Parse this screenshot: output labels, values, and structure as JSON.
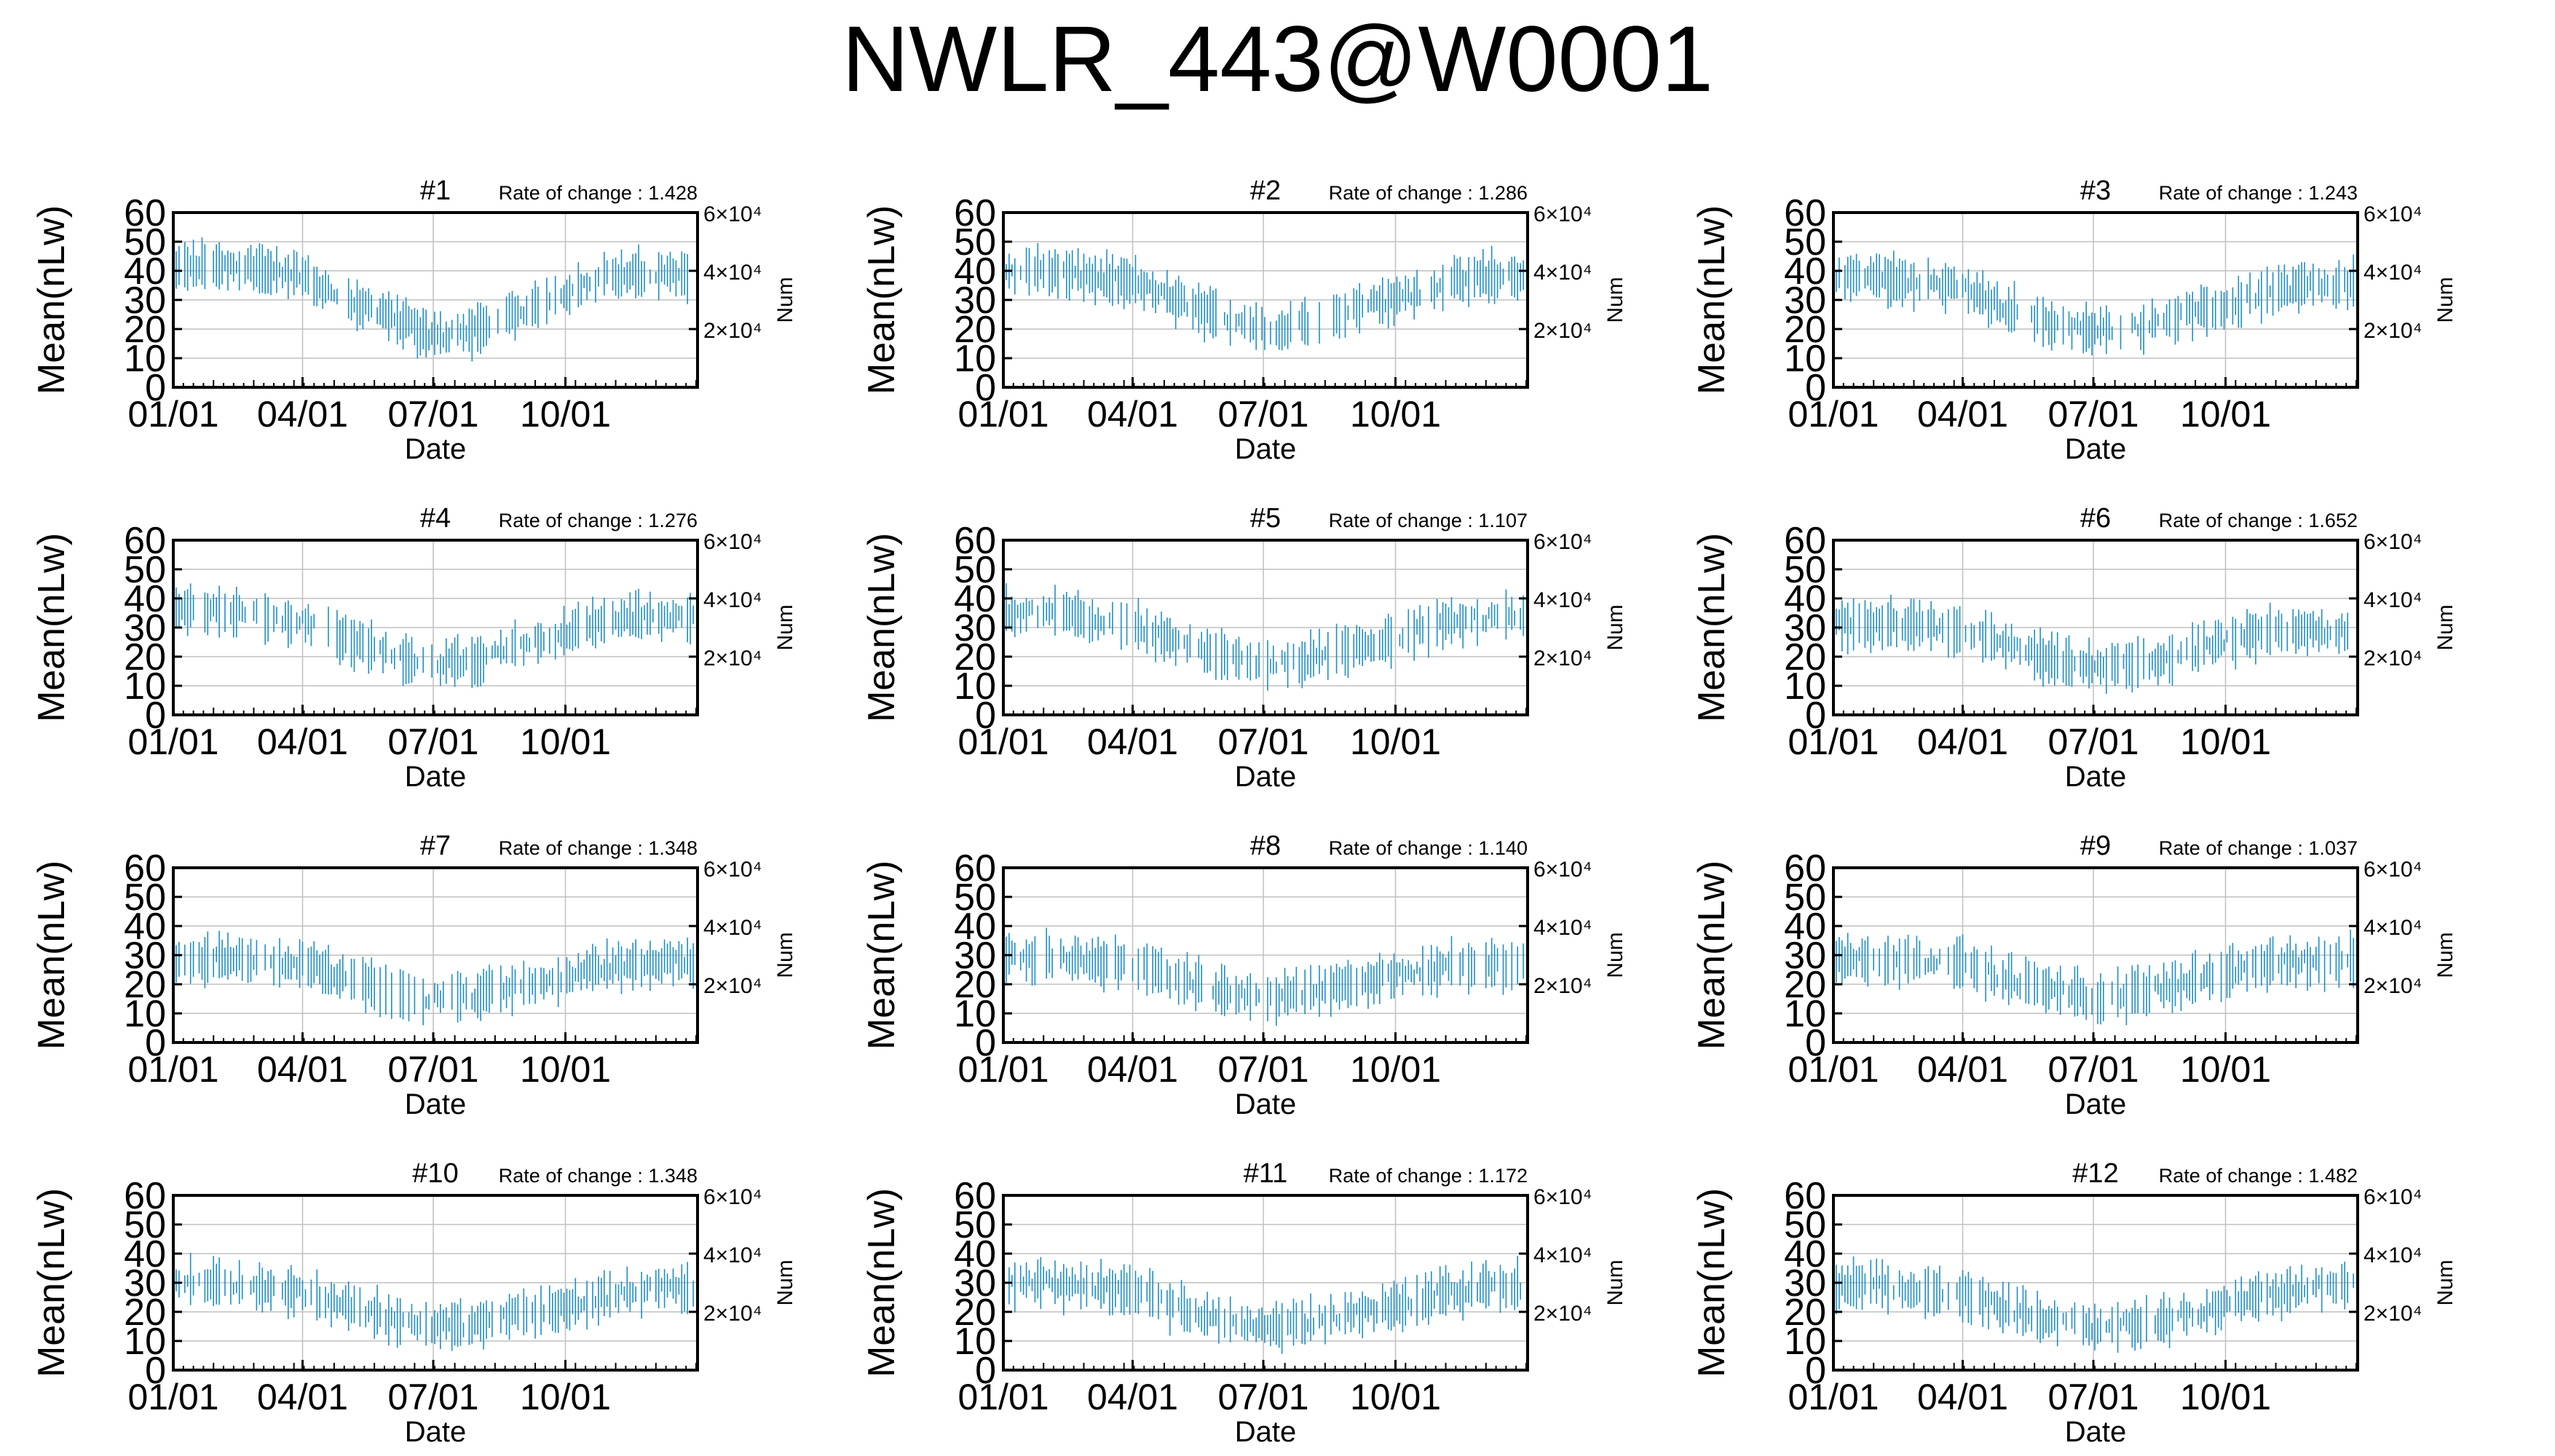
{
  "title": "NWLR_443@W0001",
  "colors": {
    "data": "#1e8fc8",
    "grid": "#c0c0c0",
    "axis": "#000000"
  },
  "chart_data": [
    {
      "type": "line",
      "subtitle": "#1",
      "rate_label": "Rate of change : 1.428",
      "xlabel": "Date",
      "ylabel": "Mean(nLw)",
      "y2label": "Num",
      "ylim": [
        0,
        60
      ],
      "yticks": [
        0,
        10,
        20,
        30,
        40,
        50,
        60
      ],
      "y2lim": [
        0,
        60000
      ],
      "y2ticks": [
        "2×10⁴",
        "4×10⁴",
        "6×10⁴"
      ],
      "xticks": [
        "01/01",
        "04/01",
        "07/01",
        "10/01"
      ],
      "grid": true,
      "series": [
        {
          "x": [
            "01/01",
            "02/01",
            "03/01",
            "04/01",
            "05/01",
            "06/01",
            "07/01",
            "08/01",
            "09/01",
            "10/01",
            "11/01",
            "12/01",
            "12/31"
          ],
          "values": [
            41,
            42,
            41,
            38,
            30,
            25,
            17,
            20,
            26,
            33,
            38,
            39,
            39
          ]
        }
      ]
    },
    {
      "type": "line",
      "subtitle": "#2",
      "rate_label": "Rate of change : 1.286",
      "xlabel": "Date",
      "ylabel": "Mean(nLw)",
      "y2label": "Num",
      "ylim": [
        0,
        60
      ],
      "yticks": [
        0,
        10,
        20,
        30,
        40,
        50,
        60
      ],
      "y2lim": [
        0,
        60000
      ],
      "y2ticks": [
        "2×10⁴",
        "4×10⁴",
        "6×10⁴"
      ],
      "xticks": [
        "01/01",
        "04/01",
        "07/01",
        "10/01"
      ],
      "grid": true,
      "series": [
        {
          "x": [
            "01/01",
            "02/01",
            "03/01",
            "04/01",
            "05/01",
            "06/01",
            "07/01",
            "08/01",
            "09/01",
            "10/01",
            "11/01",
            "12/01",
            "12/31"
          ],
          "values": [
            40,
            40,
            38,
            36,
            30,
            24,
            20,
            22,
            27,
            30,
            35,
            38,
            38
          ]
        }
      ]
    },
    {
      "type": "line",
      "subtitle": "#3",
      "rate_label": "Rate of change : 1.243",
      "xlabel": "Date",
      "ylabel": "Mean(nLw)",
      "y2label": "Num",
      "ylim": [
        0,
        60
      ],
      "yticks": [
        0,
        10,
        20,
        30,
        40,
        50,
        60
      ],
      "y2lim": [
        0,
        60000
      ],
      "y2ticks": [
        "2×10⁴",
        "4×10⁴",
        "6×10⁴"
      ],
      "xticks": [
        "01/01",
        "04/01",
        "07/01",
        "10/01"
      ],
      "grid": true,
      "series": [
        {
          "x": [
            "01/01",
            "02/01",
            "03/01",
            "04/01",
            "05/01",
            "06/01",
            "07/01",
            "08/01",
            "09/01",
            "10/01",
            "11/01",
            "12/01",
            "12/31"
          ],
          "values": [
            38,
            38,
            36,
            34,
            27,
            22,
            19,
            21,
            25,
            28,
            33,
            35,
            35
          ]
        }
      ]
    },
    {
      "type": "line",
      "subtitle": "#4",
      "rate_label": "Rate of change : 1.276",
      "xlabel": "Date",
      "ylabel": "Mean(nLw)",
      "y2label": "Num",
      "ylim": [
        0,
        60
      ],
      "yticks": [
        0,
        10,
        20,
        30,
        40,
        50,
        60
      ],
      "y2lim": [
        0,
        60000
      ],
      "y2ticks": [
        "2×10⁴",
        "4×10⁴",
        "6×10⁴"
      ],
      "xticks": [
        "01/01",
        "04/01",
        "07/01",
        "10/01"
      ],
      "grid": true,
      "series": [
        {
          "x": [
            "01/01",
            "02/01",
            "03/01",
            "04/01",
            "05/01",
            "06/01",
            "07/01",
            "08/01",
            "09/01",
            "10/01",
            "11/01",
            "12/01",
            "12/31"
          ],
          "values": [
            36,
            36,
            34,
            32,
            26,
            21,
            17,
            19,
            24,
            28,
            32,
            34,
            34
          ]
        }
      ]
    },
    {
      "type": "line",
      "subtitle": "#5",
      "rate_label": "Rate of change : 1.107",
      "xlabel": "Date",
      "ylabel": "Mean(nLw)",
      "y2label": "Num",
      "ylim": [
        0,
        60
      ],
      "yticks": [
        0,
        10,
        20,
        30,
        40,
        50,
        60
      ],
      "y2lim": [
        0,
        60000
      ],
      "y2ticks": [
        "2×10⁴",
        "4×10⁴",
        "6×10⁴"
      ],
      "xticks": [
        "01/01",
        "04/01",
        "07/01",
        "10/01"
      ],
      "grid": true,
      "series": [
        {
          "x": [
            "01/01",
            "02/01",
            "03/01",
            "04/01",
            "05/01",
            "06/01",
            "07/01",
            "08/01",
            "09/01",
            "10/01",
            "11/01",
            "12/01",
            "12/31"
          ],
          "values": [
            35,
            35,
            33,
            31,
            25,
            20,
            17,
            19,
            23,
            27,
            31,
            33,
            33
          ]
        }
      ]
    },
    {
      "type": "line",
      "subtitle": "#6",
      "rate_label": "Rate of change : 1.652",
      "xlabel": "Date",
      "ylabel": "Mean(nLw)",
      "y2label": "Num",
      "ylim": [
        0,
        60
      ],
      "yticks": [
        0,
        10,
        20,
        30,
        40,
        50,
        60
      ],
      "y2lim": [
        0,
        60000
      ],
      "y2ticks": [
        "2×10⁴",
        "4×10⁴",
        "6×10⁴"
      ],
      "xticks": [
        "01/01",
        "04/01",
        "07/01",
        "10/01"
      ],
      "grid": true,
      "series": [
        {
          "x": [
            "01/01",
            "02/01",
            "03/01",
            "04/01",
            "05/01",
            "06/01",
            "07/01",
            "08/01",
            "09/01",
            "10/01",
            "11/01",
            "12/01",
            "12/31"
          ],
          "values": [
            31,
            31,
            30,
            29,
            24,
            19,
            16,
            17,
            21,
            25,
            28,
            29,
            29
          ]
        }
      ]
    },
    {
      "type": "line",
      "subtitle": "#7",
      "rate_label": "Rate of change : 1.348",
      "xlabel": "Date",
      "ylabel": "Mean(nLw)",
      "y2label": "Num",
      "ylim": [
        0,
        60
      ],
      "yticks": [
        0,
        10,
        20,
        30,
        40,
        50,
        60
      ],
      "y2lim": [
        0,
        60000
      ],
      "y2ticks": [
        "2×10⁴",
        "4×10⁴",
        "6×10⁴"
      ],
      "xticks": [
        "01/01",
        "04/01",
        "07/01",
        "10/01"
      ],
      "grid": true,
      "series": [
        {
          "x": [
            "01/01",
            "02/01",
            "03/01",
            "04/01",
            "05/01",
            "06/01",
            "07/01",
            "08/01",
            "09/01",
            "10/01",
            "11/01",
            "12/01",
            "12/31"
          ],
          "values": [
            29,
            29,
            28,
            27,
            22,
            18,
            15,
            16,
            20,
            23,
            26,
            28,
            28
          ]
        }
      ]
    },
    {
      "type": "line",
      "subtitle": "#8",
      "rate_label": "Rate of change : 1.140",
      "xlabel": "Date",
      "ylabel": "Mean(nLw)",
      "y2label": "Num",
      "ylim": [
        0,
        60
      ],
      "yticks": [
        0,
        10,
        20,
        30,
        40,
        50,
        60
      ],
      "y2lim": [
        0,
        60000
      ],
      "y2ticks": [
        "2×10⁴",
        "4×10⁴",
        "6×10⁴"
      ],
      "xticks": [
        "01/01",
        "04/01",
        "07/01",
        "10/01"
      ],
      "grid": true,
      "series": [
        {
          "x": [
            "01/01",
            "02/01",
            "03/01",
            "04/01",
            "05/01",
            "06/01",
            "07/01",
            "08/01",
            "09/01",
            "10/01",
            "11/01",
            "12/01",
            "12/31"
          ],
          "values": [
            29,
            29,
            28,
            27,
            22,
            18,
            15,
            17,
            20,
            23,
            26,
            27,
            27
          ]
        }
      ]
    },
    {
      "type": "line",
      "subtitle": "#9",
      "rate_label": "Rate of change : 1.037",
      "xlabel": "Date",
      "ylabel": "Mean(nLw)",
      "y2label": "Num",
      "ylim": [
        0,
        60
      ],
      "yticks": [
        0,
        10,
        20,
        30,
        40,
        50,
        60
      ],
      "y2lim": [
        0,
        60000
      ],
      "y2ticks": [
        "2×10⁴",
        "4×10⁴",
        "6×10⁴"
      ],
      "xticks": [
        "01/01",
        "04/01",
        "07/01",
        "10/01"
      ],
      "grid": true,
      "series": [
        {
          "x": [
            "01/01",
            "02/01",
            "03/01",
            "04/01",
            "05/01",
            "06/01",
            "07/01",
            "08/01",
            "09/01",
            "10/01",
            "11/01",
            "12/01",
            "12/31"
          ],
          "values": [
            29,
            29,
            28,
            27,
            22,
            18,
            15,
            17,
            21,
            24,
            27,
            28,
            28
          ]
        }
      ]
    },
    {
      "type": "line",
      "subtitle": "#10",
      "rate_label": "Rate of change : 1.348",
      "xlabel": "Date",
      "ylabel": "Mean(nLw)",
      "y2label": "Num",
      "ylim": [
        0,
        60
      ],
      "yticks": [
        0,
        10,
        20,
        30,
        40,
        50,
        60
      ],
      "y2lim": [
        0,
        60000
      ],
      "y2ticks": [
        "2×10⁴",
        "4×10⁴",
        "6×10⁴"
      ],
      "xticks": [
        "01/01",
        "04/01",
        "07/01",
        "10/01"
      ],
      "grid": true,
      "series": [
        {
          "x": [
            "01/01",
            "02/01",
            "03/01",
            "04/01",
            "05/01",
            "06/01",
            "07/01",
            "08/01",
            "09/01",
            "10/01",
            "11/01",
            "12/01",
            "12/31"
          ],
          "values": [
            30,
            30,
            28,
            27,
            22,
            18,
            15,
            16,
            19,
            22,
            26,
            28,
            28
          ]
        }
      ]
    },
    {
      "type": "line",
      "subtitle": "#11",
      "rate_label": "Rate of change : 1.172",
      "xlabel": "Date",
      "ylabel": "Mean(nLw)",
      "y2label": "Num",
      "ylim": [
        0,
        60
      ],
      "yticks": [
        0,
        10,
        20,
        30,
        40,
        50,
        60
      ],
      "y2lim": [
        0,
        60000
      ],
      "y2ticks": [
        "2×10⁴",
        "4×10⁴",
        "6×10⁴"
      ],
      "xticks": [
        "01/01",
        "04/01",
        "07/01",
        "10/01"
      ],
      "grid": true,
      "series": [
        {
          "x": [
            "01/01",
            "02/01",
            "03/01",
            "04/01",
            "05/01",
            "06/01",
            "07/01",
            "08/01",
            "09/01",
            "10/01",
            "11/01",
            "12/01",
            "12/31"
          ],
          "values": [
            30,
            30,
            29,
            27,
            22,
            17,
            15,
            16,
            19,
            22,
            26,
            29,
            29
          ]
        }
      ]
    },
    {
      "type": "line",
      "subtitle": "#12",
      "rate_label": "Rate of change : 1.482",
      "xlabel": "Date",
      "ylabel": "Mean(nLw)",
      "y2label": "Num",
      "ylim": [
        0,
        60
      ],
      "yticks": [
        0,
        10,
        20,
        30,
        40,
        50,
        60
      ],
      "y2lim": [
        0,
        60000
      ],
      "y2ticks": [
        "2×10⁴",
        "4×10⁴",
        "6×10⁴"
      ],
      "xticks": [
        "01/01",
        "04/01",
        "07/01",
        "10/01"
      ],
      "grid": true,
      "series": [
        {
          "x": [
            "01/01",
            "02/01",
            "03/01",
            "04/01",
            "05/01",
            "06/01",
            "07/01",
            "08/01",
            "09/01",
            "10/01",
            "11/01",
            "12/01",
            "12/31"
          ],
          "values": [
            29,
            29,
            28,
            26,
            21,
            17,
            15,
            16,
            19,
            22,
            26,
            29,
            29
          ]
        }
      ]
    }
  ]
}
